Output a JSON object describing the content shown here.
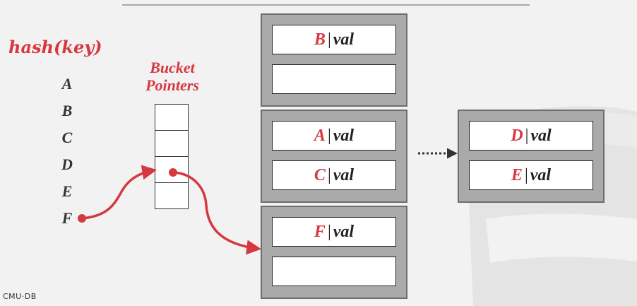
{
  "hash_title": "hash(key)",
  "keys": [
    "A",
    "B",
    "C",
    "D",
    "E",
    "F"
  ],
  "bucket_pointers_title_line1": "Bucket",
  "bucket_pointers_title_line2": "Pointers",
  "buckets": [
    {
      "slots": [
        {
          "key": "B",
          "val": "val"
        },
        {
          "key": "",
          "val": ""
        }
      ]
    },
    {
      "slots": [
        {
          "key": "A",
          "val": "val"
        },
        {
          "key": "C",
          "val": "val"
        }
      ]
    },
    {
      "slots": [
        {
          "key": "F",
          "val": "val"
        },
        {
          "key": "",
          "val": ""
        }
      ]
    },
    {
      "slots": [
        {
          "key": "D",
          "val": "val"
        },
        {
          "key": "E",
          "val": "val"
        }
      ]
    }
  ],
  "footer": "CMU·DB",
  "colors": {
    "accent": "#d7373f",
    "bucket_fill": "#aaaaaa",
    "background": "#f2f2f2"
  }
}
